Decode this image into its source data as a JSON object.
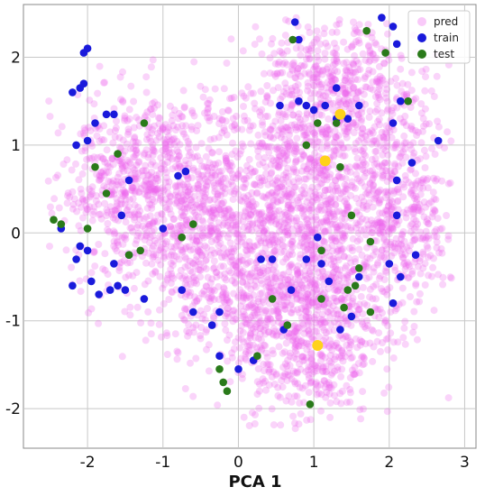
{
  "chart_data": {
    "type": "scatter",
    "title": "",
    "xlabel": "PCA 1",
    "ylabel": "",
    "xlim": [
      -2.85,
      3.15
    ],
    "ylim": [
      -2.45,
      2.6
    ],
    "x_ticks": [
      "-2",
      "-1",
      "0",
      "1",
      "2",
      "3"
    ],
    "y_ticks": [
      "2",
      "1",
      "0",
      "-1",
      "-2"
    ],
    "grid": true,
    "legend_position": "top-right",
    "series": [
      {
        "name": "pred",
        "color": "#ee66ee",
        "opacity": 0.28,
        "points": [],
        "density_note_points": 0
      },
      {
        "name": "train",
        "color": "#1a1adb",
        "points": [
          [
            -2.05,
            2.05
          ],
          [
            -2.0,
            2.1
          ],
          [
            -2.1,
            1.65
          ],
          [
            -2.2,
            1.6
          ],
          [
            -2.05,
            1.7
          ],
          [
            -1.9,
            1.25
          ],
          [
            -1.75,
            1.35
          ],
          [
            -1.65,
            1.35
          ],
          [
            -2.0,
            1.05
          ],
          [
            -2.15,
            1.0
          ],
          [
            -2.35,
            0.05
          ],
          [
            -2.1,
            -0.15
          ],
          [
            -2.15,
            -0.3
          ],
          [
            -2.0,
            -0.2
          ],
          [
            -1.95,
            -0.55
          ],
          [
            -2.2,
            -0.6
          ],
          [
            -1.85,
            -0.7
          ],
          [
            -1.7,
            -0.65
          ],
          [
            -1.6,
            -0.6
          ],
          [
            -1.5,
            -0.65
          ],
          [
            -1.55,
            0.2
          ],
          [
            -1.45,
            -0.25
          ],
          [
            -1.65,
            -0.35
          ],
          [
            -1.25,
            -0.75
          ],
          [
            -1.0,
            0.05
          ],
          [
            -0.8,
            0.65
          ],
          [
            -0.75,
            -0.65
          ],
          [
            -0.6,
            -0.9
          ],
          [
            -0.35,
            -1.05
          ],
          [
            -0.25,
            -1.4
          ],
          [
            0.0,
            -1.55
          ],
          [
            0.2,
            -1.45
          ],
          [
            0.45,
            -0.3
          ],
          [
            0.6,
            -1.1
          ],
          [
            0.7,
            -0.65
          ],
          [
            0.75,
            2.4
          ],
          [
            0.8,
            2.2
          ],
          [
            0.55,
            1.45
          ],
          [
            0.8,
            1.5
          ],
          [
            0.9,
            1.45
          ],
          [
            1.0,
            1.4
          ],
          [
            1.15,
            1.45
          ],
          [
            1.3,
            1.3
          ],
          [
            1.45,
            1.3
          ],
          [
            1.6,
            1.45
          ],
          [
            1.3,
            1.65
          ],
          [
            1.9,
            2.45
          ],
          [
            2.05,
            2.35
          ],
          [
            2.1,
            2.15
          ],
          [
            2.15,
            1.5
          ],
          [
            2.05,
            1.25
          ],
          [
            2.3,
            0.8
          ],
          [
            2.1,
            0.6
          ],
          [
            2.65,
            1.05
          ],
          [
            2.1,
            0.2
          ],
          [
            2.35,
            -0.25
          ],
          [
            2.0,
            -0.35
          ],
          [
            2.15,
            -0.5
          ],
          [
            2.05,
            -0.8
          ],
          [
            1.6,
            -0.5
          ],
          [
            1.5,
            -0.95
          ],
          [
            1.35,
            -1.1
          ],
          [
            1.2,
            -0.55
          ],
          [
            1.1,
            -0.35
          ],
          [
            1.05,
            -0.05
          ],
          [
            0.9,
            -0.3
          ],
          [
            0.3,
            -0.3
          ],
          [
            -0.25,
            -0.9
          ],
          [
            -0.7,
            0.7
          ],
          [
            -1.45,
            0.6
          ]
        ]
      },
      {
        "name": "test",
        "color": "#2a7a1a",
        "points": [
          [
            -2.45,
            0.15
          ],
          [
            -2.35,
            0.1
          ],
          [
            -2.0,
            0.05
          ],
          [
            -1.9,
            0.75
          ],
          [
            -1.75,
            0.45
          ],
          [
            -1.6,
            0.9
          ],
          [
            -1.3,
            -0.2
          ],
          [
            -1.45,
            -0.25
          ],
          [
            -1.25,
            1.25
          ],
          [
            -0.6,
            0.1
          ],
          [
            -0.75,
            -0.05
          ],
          [
            -0.25,
            -1.55
          ],
          [
            -0.2,
            -1.7
          ],
          [
            -0.15,
            -1.8
          ],
          [
            0.25,
            -1.4
          ],
          [
            0.45,
            -0.75
          ],
          [
            0.65,
            -1.05
          ],
          [
            0.72,
            2.2
          ],
          [
            0.9,
            1.0
          ],
          [
            1.05,
            1.25
          ],
          [
            1.3,
            1.25
          ],
          [
            1.35,
            0.75
          ],
          [
            1.7,
            2.3
          ],
          [
            1.95,
            2.05
          ],
          [
            2.25,
            1.5
          ],
          [
            1.5,
            0.2
          ],
          [
            1.75,
            -0.1
          ],
          [
            1.6,
            -0.4
          ],
          [
            1.4,
            -0.85
          ],
          [
            1.55,
            -0.6
          ],
          [
            1.1,
            -0.2
          ],
          [
            1.1,
            -0.75
          ],
          [
            0.95,
            -1.95
          ],
          [
            1.75,
            -0.9
          ],
          [
            1.45,
            -0.65
          ]
        ]
      },
      {
        "name": "",
        "color": "#ffd21a",
        "points": [
          [
            1.35,
            1.35
          ],
          [
            1.15,
            0.82
          ],
          [
            1.05,
            -1.28
          ]
        ]
      }
    ]
  }
}
